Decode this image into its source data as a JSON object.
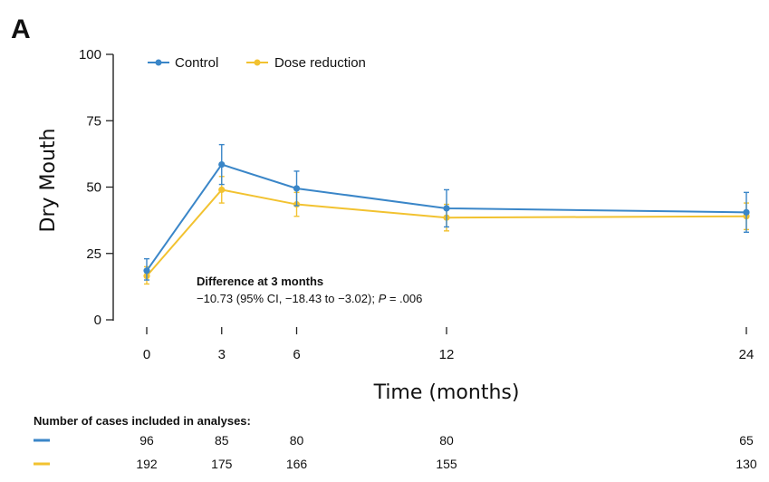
{
  "panel_label": "A",
  "chart_data": {
    "type": "line",
    "xlabel": "Time (months)",
    "ylabel": "Dry Mouth",
    "x": [
      0,
      3,
      6,
      12,
      24
    ],
    "x_tick_labels": [
      "0",
      "3",
      "6",
      "12",
      "24"
    ],
    "ylim": [
      0,
      100
    ],
    "y_ticks": [
      0,
      25,
      50,
      75,
      100
    ],
    "legend_position": "top-left",
    "grid": false,
    "series": [
      {
        "name": "Control",
        "color": "#3a86c8",
        "values": [
          18.5,
          58.5,
          49.5,
          42,
          40.5
        ],
        "err_low": [
          15,
          51,
          43,
          35,
          33
        ],
        "err_high": [
          23,
          66,
          56,
          49,
          48
        ]
      },
      {
        "name": "Dose reduction",
        "color": "#f2c230",
        "values": [
          16.5,
          49,
          43.5,
          38.5,
          39
        ],
        "err_low": [
          13.5,
          44,
          39,
          33.5,
          34
        ],
        "err_high": [
          20,
          54,
          48,
          43.5,
          44
        ]
      }
    ],
    "annotation": {
      "title": "Difference at 3 months",
      "text_prefix": "−10.73 (95% CI, −18.43 to −3.02); ",
      "p_symbol": "P",
      "p_value": " = .006"
    }
  },
  "cases_table": {
    "title": "Number of cases included in analyses:",
    "rows": [
      {
        "series": "Control",
        "color": "#3a86c8",
        "values": [
          "96",
          "85",
          "80",
          "80",
          "65"
        ]
      },
      {
        "series": "Dose reduction",
        "color": "#f2c230",
        "values": [
          "192",
          "175",
          "166",
          "155",
          "130"
        ]
      }
    ]
  }
}
